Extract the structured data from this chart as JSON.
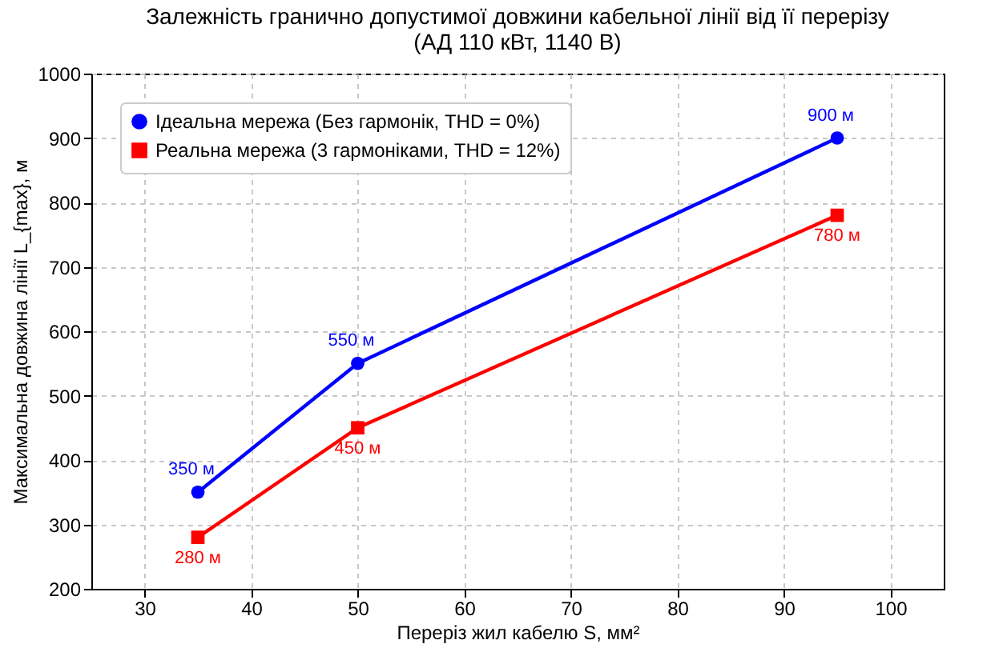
{
  "chart_data": {
    "type": "line",
    "title": "Залежність гранично допустимої довжини кабельної лінії від її перерізу\n(АД 110 кВт, 1140 В)",
    "xlabel": "Переріз жил кабелю S, мм²",
    "ylabel": "Максимальна довжина лінії L_{max}, м",
    "x": [
      35,
      50,
      95
    ],
    "series": [
      {
        "name": "Ідеальна мережа (Без гармонік, THD = 0%)",
        "color": "#0000ff",
        "marker": "circle",
        "values": [
          350,
          550,
          900
        ],
        "value_labels": [
          "350 м",
          "550 м",
          "900 м"
        ]
      },
      {
        "name": "Реальна мережа (3 гармоніками, THD = 12%)",
        "color": "#ff0000",
        "marker": "square",
        "values": [
          280,
          450,
          780
        ],
        "value_labels": [
          "280 м",
          "450 м",
          "780 м"
        ]
      }
    ],
    "xlim": [
      25,
      105
    ],
    "xticks": [
      30,
      40,
      50,
      60,
      70,
      80,
      90,
      100
    ],
    "ylim": [
      200,
      1000
    ],
    "yticks": [
      200,
      300,
      400,
      500,
      600,
      700,
      800,
      900,
      1000
    ],
    "grid": true,
    "legend": "top left",
    "line_style": "solid"
  }
}
